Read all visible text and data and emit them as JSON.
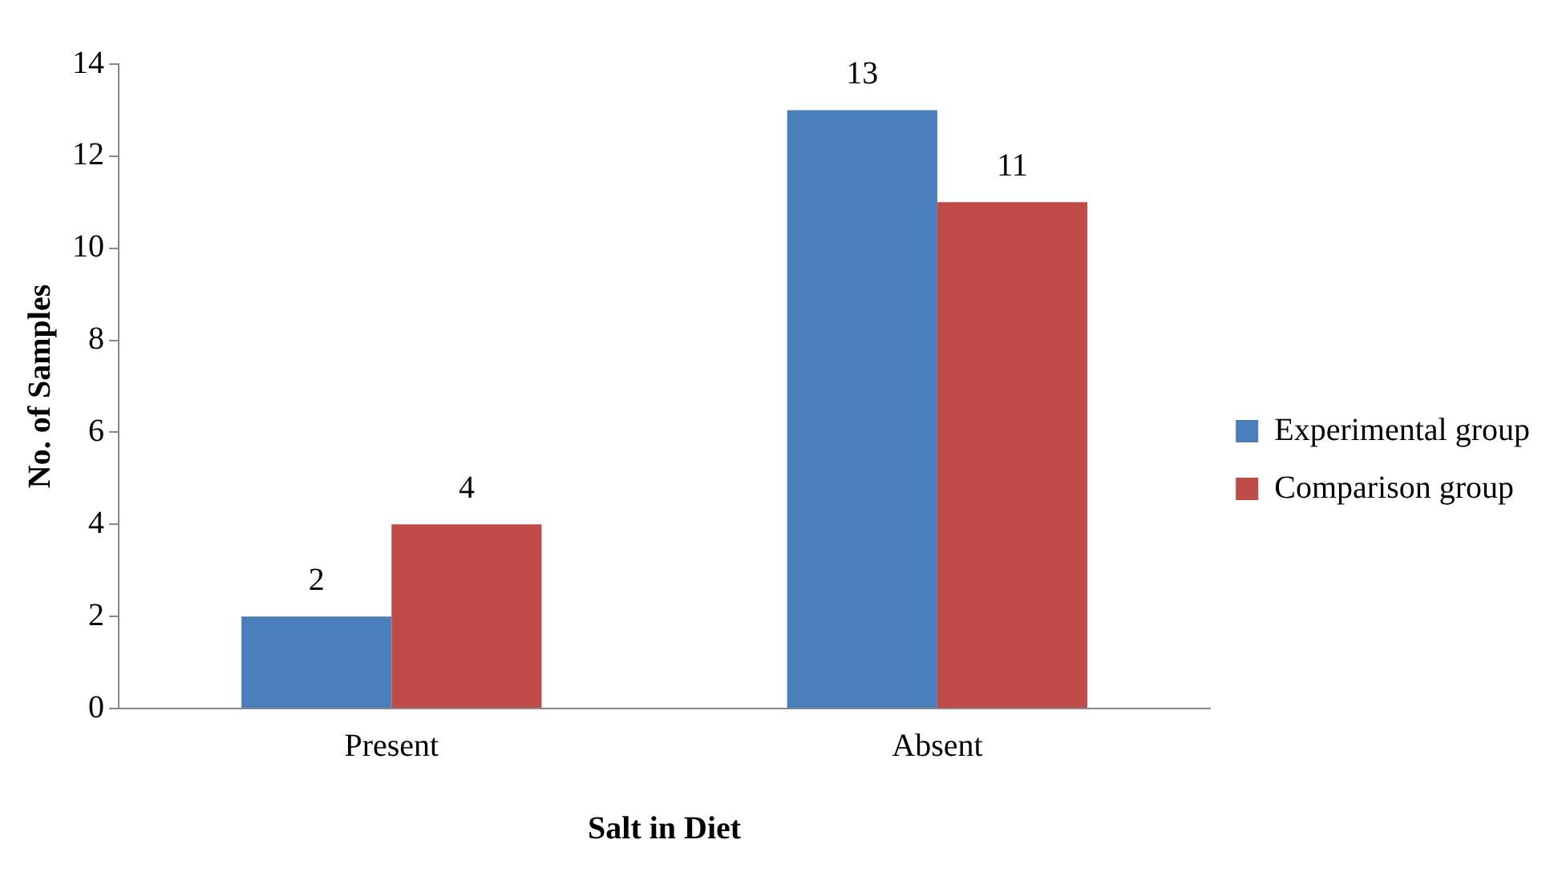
{
  "chart_data": {
    "type": "bar",
    "xlabel": "Salt in Diet",
    "ylabel": "No. of Samples",
    "categories": [
      "Present",
      "Absent"
    ],
    "series": [
      {
        "name": "Experimental group",
        "color": "#4a7ebb",
        "values": [
          2,
          13
        ]
      },
      {
        "name": "Comparison group",
        "color": "#be4b48",
        "values": [
          4,
          11
        ]
      }
    ],
    "ylim": [
      0,
      14
    ],
    "yticks": [
      0,
      2,
      4,
      6,
      8,
      10,
      12,
      14
    ],
    "grid": false,
    "legend": "right",
    "data_labels": true
  }
}
